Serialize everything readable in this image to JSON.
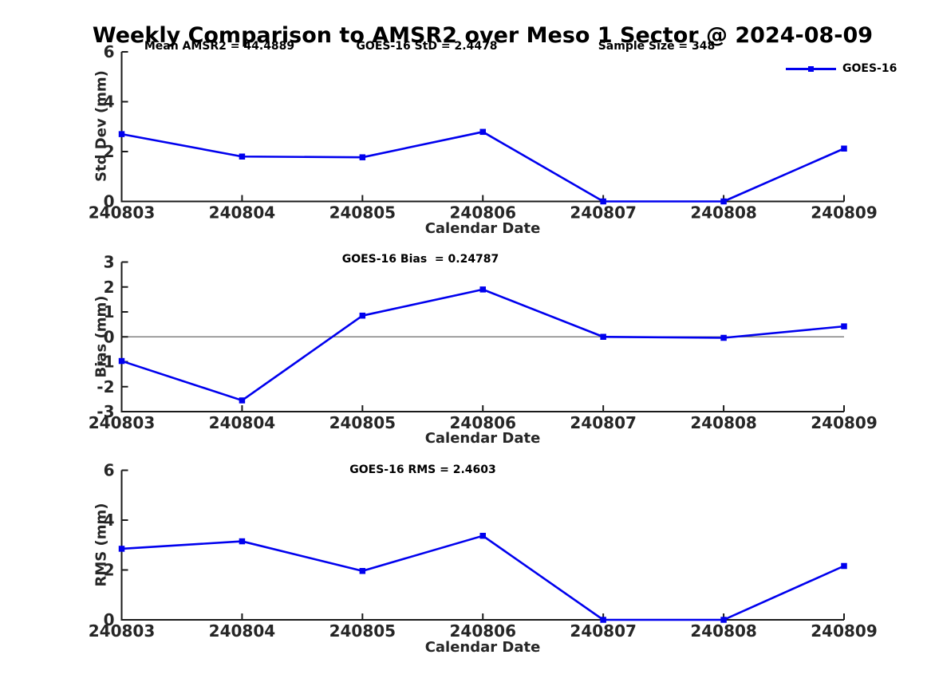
{
  "figure_title": "Weekly Comparison to AMSR2 over Meso 1 Sector @ 2024-08-09",
  "legend": {
    "label": "GOES-16",
    "marker": "filled-square",
    "position": "top-right"
  },
  "colors": {
    "line": "#0000EE",
    "axis": "#1a1a1a",
    "tick_text": "#262626",
    "zero_line": "#808080",
    "background": "#ffffff",
    "text": "#000000"
  },
  "chart_data": [
    {
      "type": "line",
      "panel": "std-dev",
      "annotations": [
        {
          "text": "Mean AMSR2 = 44.4889"
        },
        {
          "text": "GOES-16 StD = 2.4478"
        },
        {
          "text": "Sample Size = 348"
        }
      ],
      "categories": [
        "240803",
        "240804",
        "240805",
        "240806",
        "240807",
        "240808",
        "240809"
      ],
      "series": [
        {
          "name": "GOES-16",
          "values": [
            2.7,
            1.8,
            1.77,
            2.79,
            0.0,
            0.0,
            2.12
          ]
        }
      ],
      "xlabel": "Calendar Date",
      "ylabel": "Std Dev (mm)",
      "ylim": [
        0,
        6
      ],
      "yticks": [
        0,
        2,
        4,
        6
      ],
      "grid": false,
      "zero_line": false,
      "legend_position": "top-right"
    },
    {
      "type": "line",
      "panel": "bias",
      "annotations": [
        {
          "text": "GOES-16 Bias  = 0.24787"
        }
      ],
      "categories": [
        "240803",
        "240804",
        "240805",
        "240806",
        "240807",
        "240808",
        "240809"
      ],
      "series": [
        {
          "name": "GOES-16",
          "values": [
            -0.97,
            -2.55,
            0.85,
            1.9,
            0.0,
            -0.04,
            0.42
          ]
        }
      ],
      "xlabel": "Calendar Date",
      "ylabel": "Bias (mm)",
      "ylim": [
        -3,
        3
      ],
      "yticks": [
        -3,
        -2,
        -1,
        0,
        1,
        2,
        3
      ],
      "grid": false,
      "zero_line": true,
      "legend_position": "none"
    },
    {
      "type": "line",
      "panel": "rms",
      "annotations": [
        {
          "text": "GOES-16 RMS = 2.4603"
        }
      ],
      "categories": [
        "240803",
        "240804",
        "240805",
        "240806",
        "240807",
        "240808",
        "240809"
      ],
      "series": [
        {
          "name": "GOES-16",
          "values": [
            2.85,
            3.15,
            1.96,
            3.37,
            0.0,
            0.0,
            2.16
          ]
        }
      ],
      "xlabel": "Calendar Date",
      "ylabel": "RMS (mm)",
      "ylim": [
        0,
        6
      ],
      "yticks": [
        0,
        2,
        4,
        6
      ],
      "grid": false,
      "zero_line": false,
      "legend_position": "none"
    }
  ]
}
